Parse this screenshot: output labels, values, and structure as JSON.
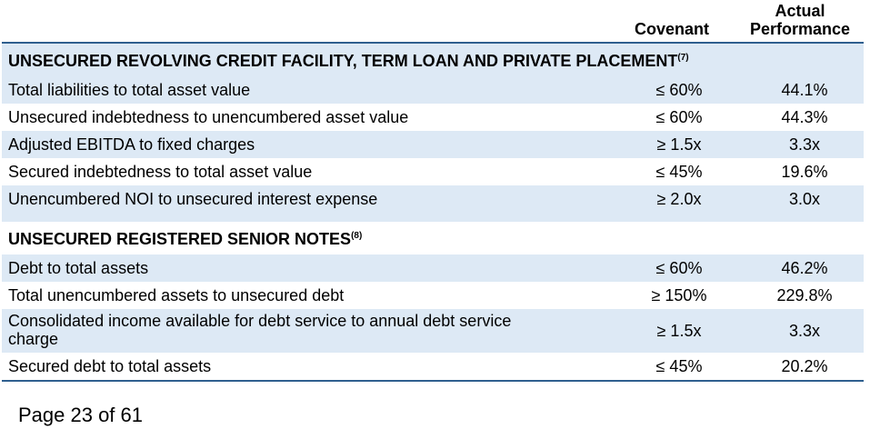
{
  "columns": {
    "covenant": "Covenant",
    "actual_line1": "Actual",
    "actual_line2": "Performance"
  },
  "sections": [
    {
      "title": "UNSECURED REVOLVING CREDIT FACILITY, TERM LOAN AND PRIVATE PLACEMENT",
      "footnote": "(7)",
      "rows": [
        {
          "label": "Total liabilities to total asset value",
          "covenant": "≤ 60%",
          "actual": "44.1%"
        },
        {
          "label": "Unsecured indebtedness to unencumbered asset value",
          "covenant": "≤ 60%",
          "actual": "44.3%"
        },
        {
          "label": "Adjusted EBITDA to fixed charges",
          "covenant": "≥ 1.5x",
          "actual": "3.3x"
        },
        {
          "label": "Secured indebtedness to total asset value",
          "covenant": "≤ 45%",
          "actual": "19.6%"
        },
        {
          "label": "Unencumbered NOI to unsecured interest expense",
          "covenant": "≥ 2.0x",
          "actual": "3.0x"
        }
      ]
    },
    {
      "title": "UNSECURED REGISTERED SENIOR NOTES",
      "footnote": "(8)",
      "rows": [
        {
          "label": "Debt to total assets",
          "covenant": "≤ 60%",
          "actual": "46.2%"
        },
        {
          "label": "Total unencumbered assets to unsecured debt",
          "covenant": "≥ 150%",
          "actual": "229.8%"
        },
        {
          "label_line1": "Consolidated income available for debt service to annual debt service",
          "label_line2": "charge",
          "covenant": "≥ 1.5x",
          "actual": "3.3x"
        },
        {
          "label": "Secured debt to total assets",
          "covenant": "≤ 45%",
          "actual": "20.2%"
        }
      ]
    }
  ],
  "footer": {
    "page": "Page 23 of 61"
  }
}
